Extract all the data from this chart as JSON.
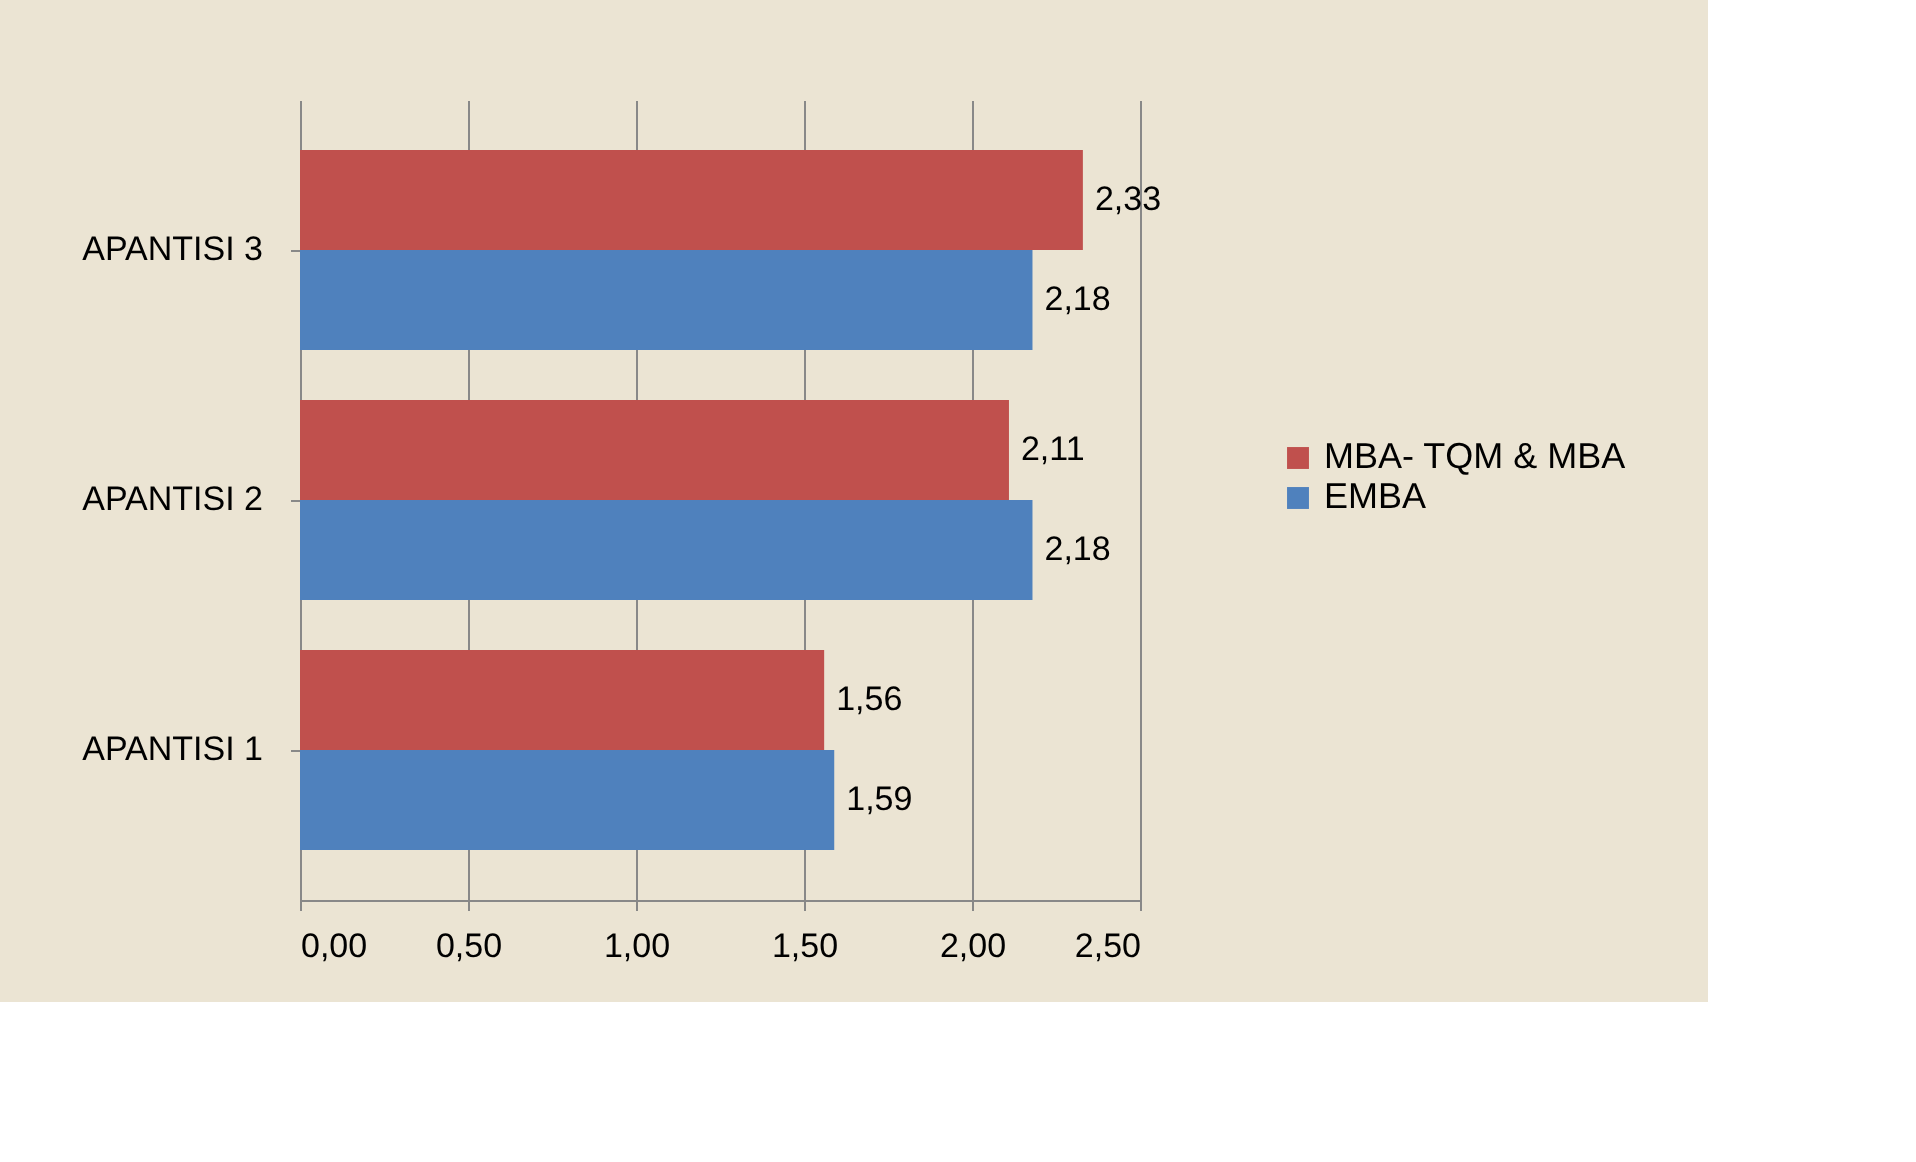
{
  "chart_data": {
    "type": "bar",
    "orientation": "horizontal",
    "categories": [
      "APANTISI 3",
      "APANTISI 2",
      "APANTISI 1"
    ],
    "series": [
      {
        "name": "MBA- TQM & MBA",
        "color": "#c0504d",
        "values": [
          2.33,
          2.11,
          1.56
        ],
        "value_labels": [
          "2,33",
          "2,11",
          "1,56"
        ]
      },
      {
        "name": "EMBA",
        "color": "#4f81bd",
        "values": [
          2.18,
          2.18,
          1.59
        ],
        "value_labels": [
          "2,18",
          "2,18",
          "1,59"
        ]
      }
    ],
    "xlim": [
      0,
      2.5
    ],
    "xticks": [
      {
        "value": 0,
        "label": "0,00"
      },
      {
        "value": 0.5,
        "label": "0,50"
      },
      {
        "value": 1,
        "label": "1,00"
      },
      {
        "value": 1.5,
        "label": "1,50"
      },
      {
        "value": 2,
        "label": "2,00"
      },
      {
        "value": 2.5,
        "label": "2,50"
      }
    ],
    "grid": "x",
    "legend": "right"
  }
}
